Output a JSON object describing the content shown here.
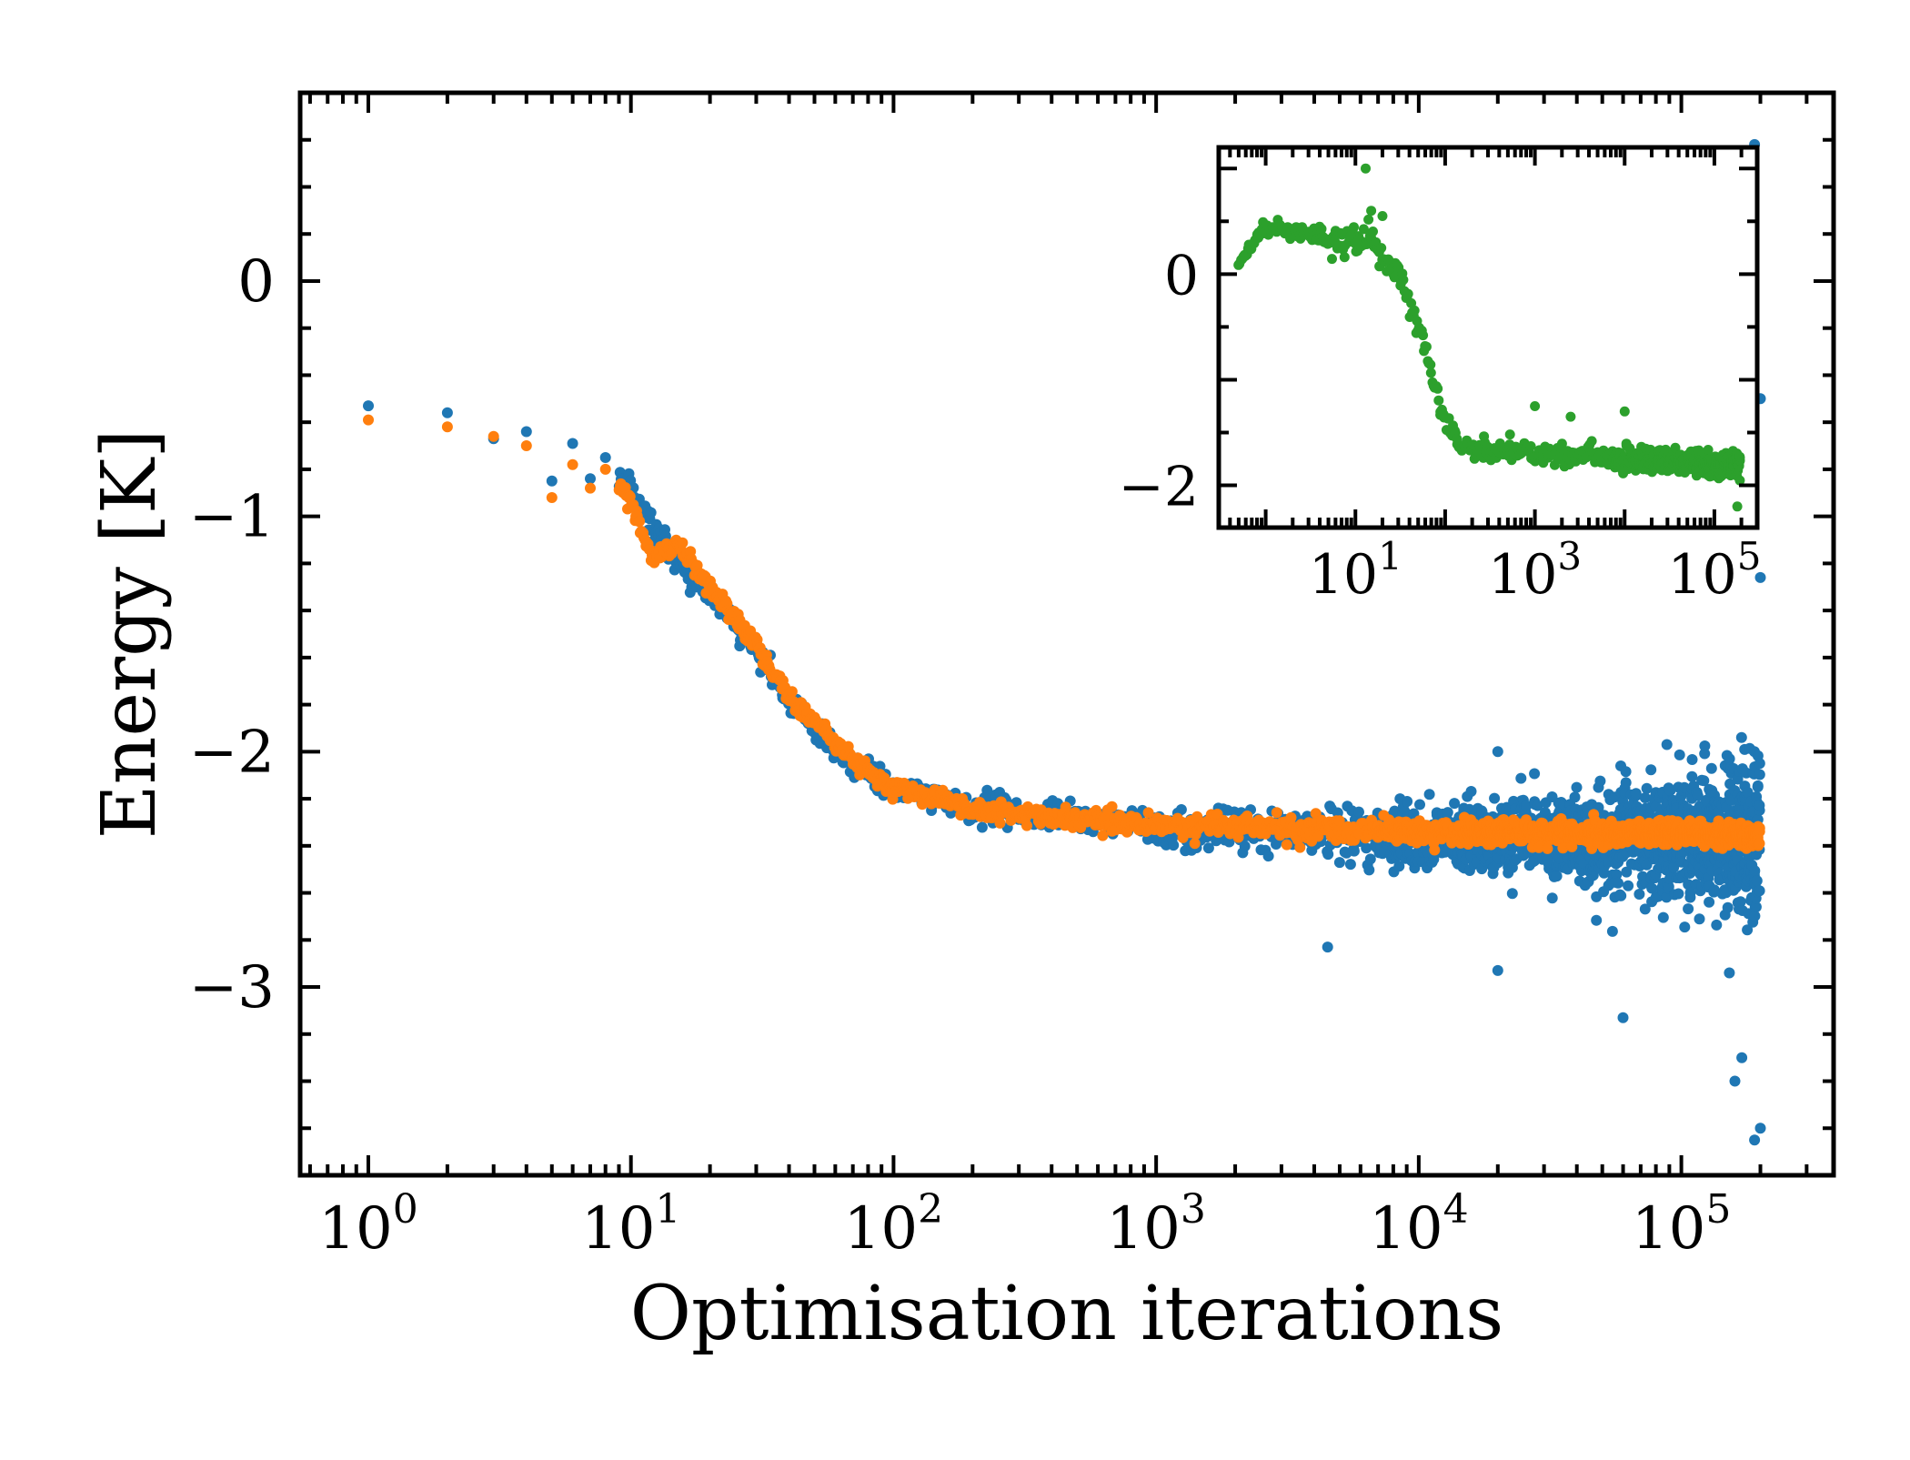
{
  "figure": {
    "background": "#ffffff"
  },
  "chart_data": [
    {
      "type": "scatter",
      "title": "",
      "xlabel": "Optimisation iterations",
      "ylabel": "Energy [K]",
      "xscale": "log",
      "xlim": [
        0.55,
        380000
      ],
      "ylim": [
        -3.8,
        0.8
      ],
      "x_ticks": [
        {
          "base": "10",
          "exp": "0",
          "value": 1
        },
        {
          "base": "10",
          "exp": "1",
          "value": 10
        },
        {
          "base": "10",
          "exp": "2",
          "value": 100
        },
        {
          "base": "10",
          "exp": "3",
          "value": 1000
        },
        {
          "base": "10",
          "exp": "4",
          "value": 10000
        },
        {
          "base": "10",
          "exp": "5",
          "value": 100000
        }
      ],
      "y_ticks": [
        {
          "label": "0",
          "value": 0
        },
        {
          "label": "−1",
          "value": -1
        },
        {
          "label": "−2",
          "value": -2
        },
        {
          "label": "−3",
          "value": -3
        }
      ],
      "grid": false,
      "legend": "none",
      "series": [
        {
          "color": "#1f77b4",
          "trend": [
            [
              1,
              -0.53
            ],
            [
              2,
              -0.56
            ],
            [
              3,
              -0.67
            ],
            [
              4,
              -0.64
            ],
            [
              5,
              -0.85
            ],
            [
              6,
              -0.69
            ],
            [
              7,
              -0.84
            ],
            [
              8,
              -0.75
            ],
            [
              10,
              -0.9
            ],
            [
              15,
              -1.2
            ],
            [
              20,
              -1.32
            ],
            [
              30,
              -1.58
            ],
            [
              40,
              -1.78
            ],
            [
              60,
              -1.98
            ],
            [
              80,
              -2.1
            ],
            [
              100,
              -2.16
            ],
            [
              200,
              -2.24
            ],
            [
              500,
              -2.29
            ],
            [
              1000,
              -2.32
            ],
            [
              10000,
              -2.36
            ],
            [
              100000,
              -2.37
            ],
            [
              200000,
              -2.38
            ]
          ],
          "spread": [
            [
              100,
              0.06
            ],
            [
              1000,
              0.07
            ],
            [
              10000,
              0.15
            ],
            [
              50000,
              0.2
            ],
            [
              100000,
              0.3
            ],
            [
              200000,
              0.45
            ]
          ],
          "outliers": [
            [
              190000,
              0.58
            ],
            [
              200000,
              -0.5
            ],
            [
              200000,
              -3.6
            ],
            [
              190000,
              -3.65
            ],
            [
              160000,
              -3.4
            ],
            [
              170000,
              -3.3
            ],
            [
              60000,
              -3.13
            ],
            [
              20000,
              -2.93
            ],
            [
              200000,
              -1.26
            ],
            [
              4500,
              -2.83
            ],
            [
              20000,
              -2.0
            ],
            [
              1000,
              -2.29
            ]
          ]
        },
        {
          "color": "#ff7f0e",
          "trend": [
            [
              1,
              -0.59
            ],
            [
              2,
              -0.62
            ],
            [
              3,
              -0.66
            ],
            [
              4,
              -0.7
            ],
            [
              5,
              -0.92
            ],
            [
              6,
              -0.78
            ],
            [
              7,
              -0.88
            ],
            [
              8,
              -0.8
            ],
            [
              10,
              -0.93
            ],
            [
              12,
              -1.18
            ],
            [
              15,
              -1.12
            ],
            [
              20,
              -1.3
            ],
            [
              30,
              -1.55
            ],
            [
              40,
              -1.76
            ],
            [
              60,
              -1.96
            ],
            [
              80,
              -2.08
            ],
            [
              100,
              -2.15
            ],
            [
              200,
              -2.24
            ],
            [
              500,
              -2.29
            ],
            [
              1000,
              -2.31
            ],
            [
              10000,
              -2.34
            ],
            [
              100000,
              -2.35
            ],
            [
              200000,
              -2.36
            ]
          ],
          "spread": [
            [
              100,
              0.04
            ],
            [
              1000,
              0.05
            ],
            [
              10000,
              0.05
            ],
            [
              100000,
              0.05
            ],
            [
              200000,
              0.05
            ]
          ],
          "outliers": []
        }
      ]
    },
    {
      "type": "scatter",
      "title": "",
      "xlabel": "",
      "ylabel": "",
      "xscale": "log",
      "xlim": [
        0.3,
        300000
      ],
      "ylim": [
        -2.4,
        1.2
      ],
      "x_ticks": [
        {
          "base": "10",
          "exp": "1",
          "value": 10
        },
        {
          "base": "10",
          "exp": "3",
          "value": 1000
        },
        {
          "base": "10",
          "exp": "5",
          "value": 100000
        }
      ],
      "y_ticks": [
        {
          "label": "0",
          "value": 0
        },
        {
          "label": "−2",
          "value": -2
        }
      ],
      "grid": false,
      "legend": "none",
      "placement": "inset-top-right",
      "series": [
        {
          "color": "#2ca02c",
          "trend": [
            [
              0.5,
              0.1
            ],
            [
              1,
              0.45
            ],
            [
              2,
              0.42
            ],
            [
              4,
              0.35
            ],
            [
              10,
              0.3
            ],
            [
              15,
              0.35
            ],
            [
              20,
              0.15
            ],
            [
              30,
              0.0
            ],
            [
              40,
              -0.3
            ],
            [
              60,
              -0.7
            ],
            [
              80,
              -1.1
            ],
            [
              100,
              -1.4
            ],
            [
              150,
              -1.6
            ],
            [
              200,
              -1.65
            ],
            [
              1000,
              -1.7
            ],
            [
              10000,
              -1.75
            ],
            [
              100000,
              -1.8
            ],
            [
              200000,
              -1.8
            ]
          ],
          "spread": [
            [
              0.5,
              0.05
            ],
            [
              10,
              0.15
            ],
            [
              100,
              0.12
            ],
            [
              200,
              0.1
            ],
            [
              1000,
              0.1
            ],
            [
              10000,
              0.12
            ],
            [
              200000,
              0.12
            ]
          ],
          "outliers": [
            [
              13,
              1.0
            ],
            [
              15,
              0.6
            ],
            [
              20,
              0.55
            ],
            [
              180000,
              -2.2
            ],
            [
              1000,
              -1.25
            ],
            [
              10000,
              -1.3
            ],
            [
              2500,
              -1.35
            ]
          ]
        }
      ]
    }
  ]
}
